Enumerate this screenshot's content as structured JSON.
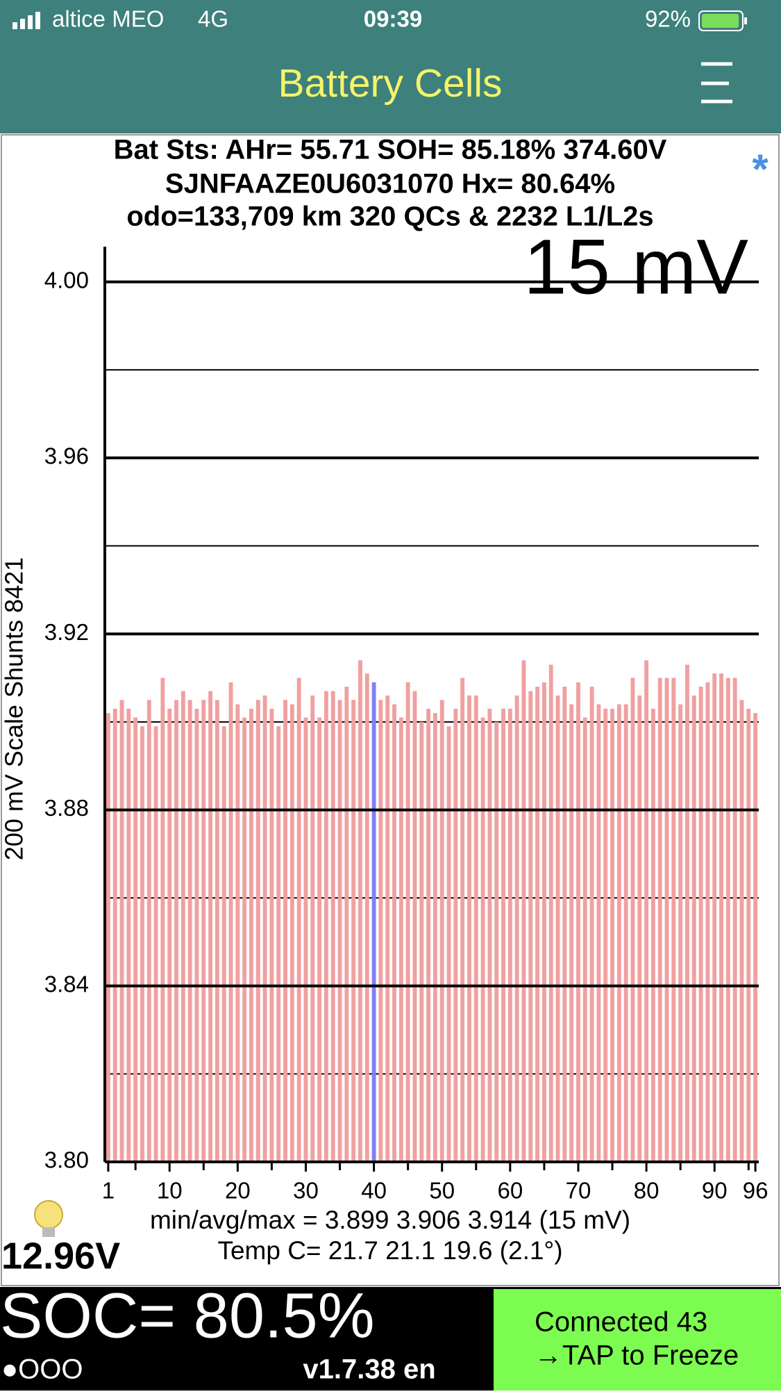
{
  "status_bar": {
    "carrier": "altice MEO",
    "network": "4G",
    "time": "09:39",
    "battery": "92%"
  },
  "header": {
    "title": "Battery Cells"
  },
  "info": {
    "lines": [
      "Bat Sts: AHr= 55.71 SOH= 85.18% 374.60V",
      "SJNFAAZE0U6031070   Hx= 80.64%",
      "odo=133,709 km 320 QCs & 2232 L1/L2s"
    ],
    "marker": "*"
  },
  "chart_data": {
    "type": "bar",
    "annotation": "15 mV",
    "ylabel": "200 mV Scale   Shunts 8421",
    "x": [
      1,
      2,
      3,
      4,
      5,
      6,
      7,
      8,
      9,
      10,
      11,
      12,
      13,
      14,
      15,
      16,
      17,
      18,
      19,
      20,
      21,
      22,
      23,
      24,
      25,
      26,
      27,
      28,
      29,
      30,
      31,
      32,
      33,
      34,
      35,
      36,
      37,
      38,
      39,
      40,
      41,
      42,
      43,
      44,
      45,
      46,
      47,
      48,
      49,
      50,
      51,
      52,
      53,
      54,
      55,
      56,
      57,
      58,
      59,
      60,
      61,
      62,
      63,
      64,
      65,
      66,
      67,
      68,
      69,
      70,
      71,
      72,
      73,
      74,
      75,
      76,
      77,
      78,
      79,
      80,
      81,
      82,
      83,
      84,
      85,
      86,
      87,
      88,
      89,
      90,
      91,
      92,
      93,
      94,
      95,
      96
    ],
    "values": [
      3.902,
      3.903,
      3.905,
      3.903,
      3.901,
      3.899,
      3.905,
      3.899,
      3.91,
      3.903,
      3.905,
      3.907,
      3.905,
      3.903,
      3.905,
      3.907,
      3.905,
      3.899,
      3.909,
      3.904,
      3.901,
      3.903,
      3.905,
      3.906,
      3.903,
      3.899,
      3.905,
      3.904,
      3.91,
      3.901,
      3.906,
      3.901,
      3.907,
      3.907,
      3.905,
      3.908,
      3.905,
      3.914,
      3.911,
      3.909,
      3.905,
      3.906,
      3.904,
      3.901,
      3.909,
      3.907,
      3.9,
      3.903,
      3.902,
      3.905,
      3.899,
      3.903,
      3.91,
      3.906,
      3.906,
      3.901,
      3.903,
      3.9,
      3.903,
      3.903,
      3.906,
      3.914,
      3.907,
      3.908,
      3.909,
      3.913,
      3.906,
      3.908,
      3.904,
      3.909,
      3.901,
      3.908,
      3.904,
      3.903,
      3.903,
      3.904,
      3.904,
      3.91,
      3.906,
      3.914,
      3.903,
      3.91,
      3.91,
      3.91,
      3.904,
      3.913,
      3.906,
      3.908,
      3.909,
      3.911,
      3.911,
      3.91,
      3.91,
      3.905,
      3.903,
      3.902
    ],
    "color": "#f0a0a0",
    "highlight": {
      "x": 40,
      "color": "#7f7ff5"
    },
    "xlim": [
      0.5,
      96.5
    ],
    "xticks": [
      1,
      10,
      20,
      30,
      40,
      50,
      60,
      70,
      80,
      90,
      96
    ],
    "minor_xticks": [
      5,
      15,
      25,
      35,
      45,
      55,
      65,
      75,
      85,
      95
    ],
    "ylim": [
      3.8,
      4.008
    ],
    "yticks": [
      {
        "value": 3.8,
        "label": "3.80"
      },
      3.84,
      3.88,
      3.92,
      3.96,
      {
        "value": 4,
        "label": "4.00"
      }
    ],
    "minor_yticks": [
      3.82,
      3.86,
      3.9,
      3.94,
      3.98
    ],
    "grid": true
  },
  "stats": {
    "lines": [
      "min/avg/max = 3.899 3.906 3.914  (15 mV)",
      "Temp C= 21.7  21.1  19.6  (2.1°)"
    ],
    "voltage": "12.96V"
  },
  "footer": {
    "soc": "SOC= 80.5%",
    "dots": "●OOO",
    "version": "v1.7.38 en",
    "button": {
      "lines": [
        "Connected 43",
        "→TAP to Freeze"
      ]
    }
  }
}
